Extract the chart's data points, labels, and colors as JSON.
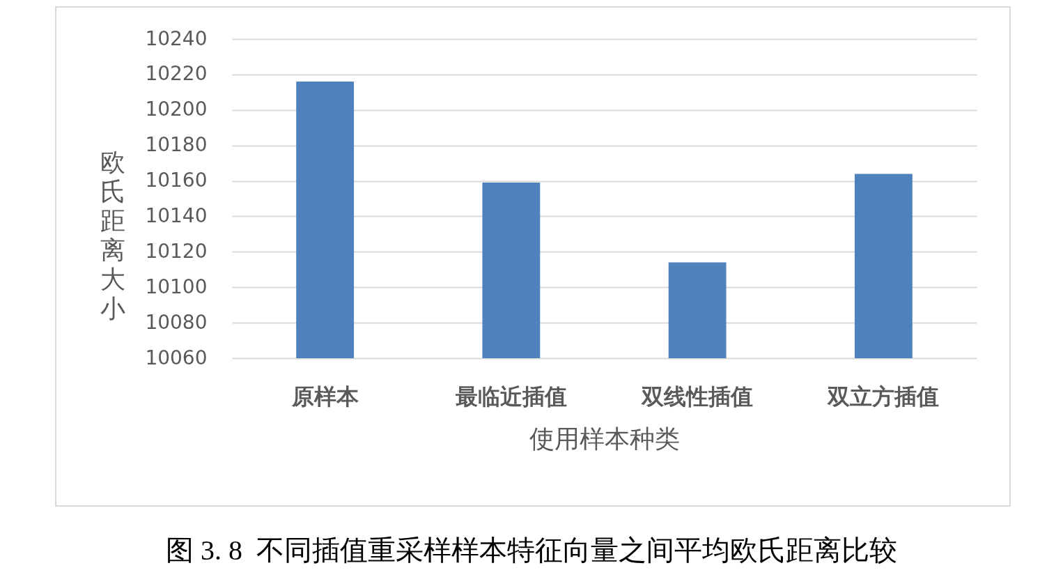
{
  "chart_data": {
    "type": "bar",
    "title": "图 3. 8  不同插值重采样样本特征向量之间平均欧氏距离比较",
    "xlabel": "使用样本种类",
    "ylabel": "欧氏距离大小",
    "categories": [
      "原样本",
      "最临近插值",
      "双线性插值",
      "双立方插值"
    ],
    "values": [
      10216,
      10159,
      10114,
      10164
    ],
    "color": "#4f81bd",
    "ylim": [
      10060,
      10240
    ],
    "yticks": [
      10060,
      10080,
      10100,
      10120,
      10140,
      10160,
      10180,
      10200,
      10220,
      10240
    ],
    "grid": "y"
  }
}
